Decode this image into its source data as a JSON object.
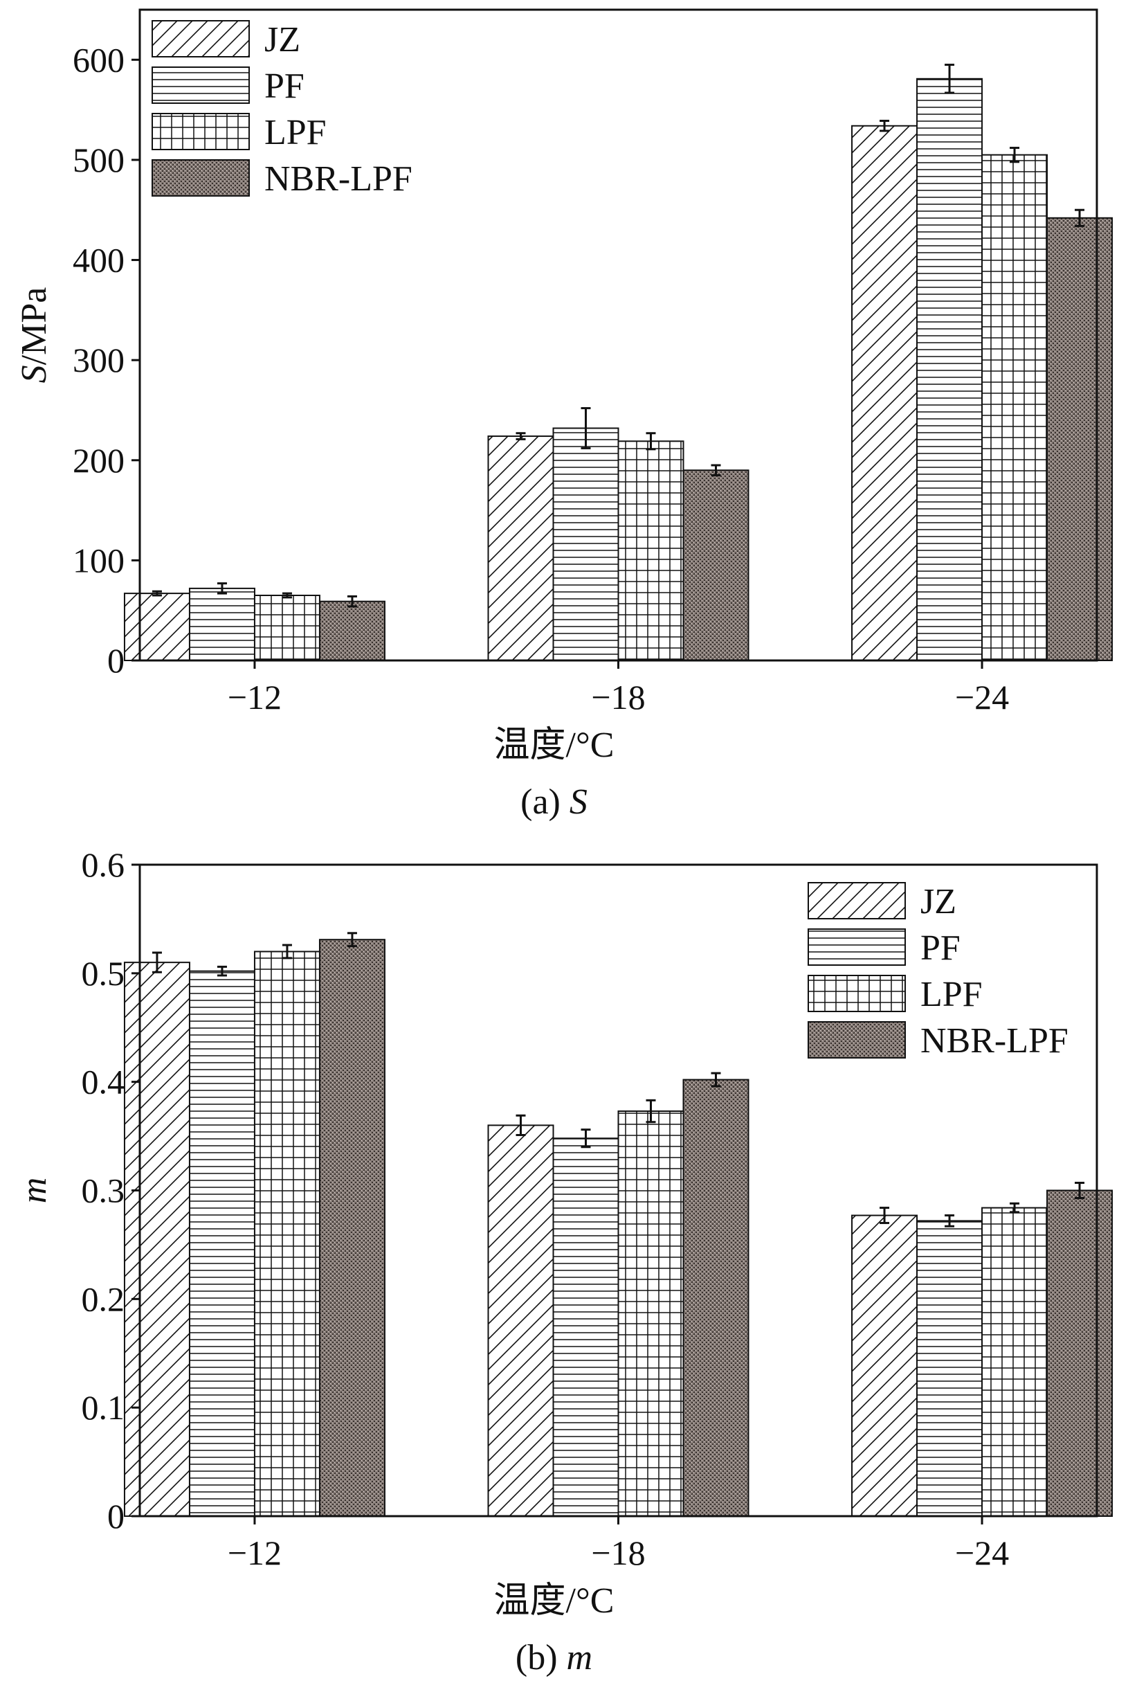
{
  "figure": {
    "colors": {
      "ink": "#111111",
      "background": "#ffffff",
      "nbr_fill": "#8a7f7a"
    }
  },
  "chart_data": [
    {
      "type": "bar",
      "panel": "a",
      "caption_prefix": "(a) ",
      "caption_var": "S",
      "title": "",
      "xlabel": "温度/°C",
      "ylabel_var": "S",
      "ylabel_unit": "/MPa",
      "categories": [
        "−12",
        "−18",
        "−24"
      ],
      "ylim": [
        0,
        650
      ],
      "yticks": [
        0,
        100,
        200,
        300,
        400,
        500,
        600
      ],
      "ytick_labels": [
        "0",
        "100",
        "200",
        "300",
        "400",
        "500",
        "600"
      ],
      "legend_position": "top-left",
      "series": [
        {
          "name": "JZ",
          "pattern": "hatch-diagonal",
          "values": [
            67,
            224,
            534
          ],
          "errors": [
            2,
            3,
            5
          ]
        },
        {
          "name": "PF",
          "pattern": "hatch-horizontal",
          "values": [
            72,
            232,
            581
          ],
          "errors": [
            5,
            20,
            14
          ]
        },
        {
          "name": "LPF",
          "pattern": "hatch-grid",
          "values": [
            65,
            219,
            505
          ],
          "errors": [
            2,
            8,
            7
          ]
        },
        {
          "name": "NBR-LPF",
          "pattern": "stipple",
          "values": [
            59,
            190,
            442
          ],
          "errors": [
            5,
            5,
            8
          ]
        }
      ]
    },
    {
      "type": "bar",
      "panel": "b",
      "caption_prefix": "(b) ",
      "caption_var": "m",
      "title": "",
      "xlabel": "温度/°C",
      "ylabel_var": "m",
      "ylabel_unit": "",
      "categories": [
        "−12",
        "−18",
        "−24"
      ],
      "ylim": [
        0,
        0.6
      ],
      "yticks": [
        0,
        0.1,
        0.2,
        0.3,
        0.4,
        0.5,
        0.6
      ],
      "ytick_labels": [
        "0",
        "0.1",
        "0.2",
        "0.3",
        "0.4",
        "0.5",
        "0.6"
      ],
      "legend_position": "top-right",
      "series": [
        {
          "name": "JZ",
          "pattern": "hatch-diagonal",
          "values": [
            0.51,
            0.36,
            0.277
          ],
          "errors": [
            0.009,
            0.009,
            0.007
          ]
        },
        {
          "name": "PF",
          "pattern": "hatch-horizontal",
          "values": [
            0.502,
            0.348,
            0.272
          ],
          "errors": [
            0.004,
            0.008,
            0.005
          ]
        },
        {
          "name": "LPF",
          "pattern": "hatch-grid",
          "values": [
            0.52,
            0.373,
            0.284
          ],
          "errors": [
            0.006,
            0.01,
            0.004
          ]
        },
        {
          "name": "NBR-LPF",
          "pattern": "stipple",
          "values": [
            0.531,
            0.402,
            0.3
          ],
          "errors": [
            0.006,
            0.006,
            0.007
          ]
        }
      ]
    }
  ]
}
